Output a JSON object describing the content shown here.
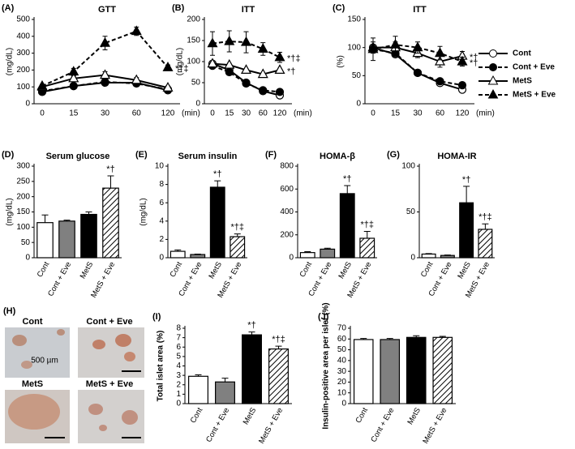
{
  "chart_data": [
    {
      "type": "line",
      "label": "(A)",
      "title": "GTT",
      "y_label": "(mg/dL)",
      "x_unit": "(min)",
      "categories": [
        "0",
        "15",
        "30",
        "60",
        "120"
      ],
      "ylim": [
        0,
        500
      ],
      "yticks": [
        0,
        100,
        200,
        300,
        400,
        500
      ],
      "series": [
        {
          "name": "Cont",
          "color": "#000000",
          "marker": "circle",
          "filled": false,
          "dashed": false,
          "values": [
            70,
            105,
            125,
            125,
            80
          ]
        },
        {
          "name": "Cont + Eve",
          "color": "#000000",
          "marker": "circle",
          "filled": true,
          "dashed": true,
          "values": [
            75,
            105,
            130,
            120,
            85
          ]
        },
        {
          "name": "MetS",
          "color": "#000000",
          "marker": "triangle",
          "filled": false,
          "dashed": false,
          "values": [
            100,
            150,
            170,
            140,
            95
          ],
          "errors": [
            10,
            15,
            20,
            15,
            10
          ]
        },
        {
          "name": "MetS + Eve",
          "color": "#000000",
          "marker": "triangle",
          "filled": true,
          "dashed": true,
          "values": [
            105,
            190,
            360,
            430,
            215
          ],
          "errors": [
            10,
            20,
            40,
            25,
            15
          ],
          "annotation": "*†‡"
        }
      ]
    },
    {
      "type": "line",
      "label": "(B)",
      "title": "ITT",
      "y_label": "(mg/dL)",
      "x_unit": "(min)",
      "categories": [
        "0",
        "15",
        "30",
        "60",
        "120"
      ],
      "ylim": [
        0,
        200
      ],
      "yticks": [
        0,
        50,
        100,
        150,
        200
      ],
      "series": [
        {
          "name": "Cont",
          "color": "#000000",
          "marker": "circle",
          "filled": false,
          "dashed": false,
          "values": [
            95,
            80,
            50,
            30,
            20
          ]
        },
        {
          "name": "Cont + Eve",
          "color": "#000000",
          "marker": "circle",
          "filled": true,
          "dashed": true,
          "values": [
            90,
            75,
            48,
            32,
            28
          ]
        },
        {
          "name": "MetS",
          "color": "#000000",
          "marker": "triangle",
          "filled": false,
          "dashed": false,
          "values": [
            95,
            92,
            80,
            70,
            80
          ],
          "annotation": "*†"
        },
        {
          "name": "MetS + Eve",
          "color": "#000000",
          "marker": "triangle",
          "filled": true,
          "dashed": true,
          "values": [
            143,
            148,
            146,
            130,
            110
          ],
          "errors": [
            28,
            25,
            25,
            15,
            12
          ],
          "annotation": "*†‡"
        }
      ]
    },
    {
      "type": "line",
      "label": "(C)",
      "title": "ITT",
      "y_label": "(%)",
      "x_unit": "(min)",
      "categories": [
        "0",
        "15",
        "30",
        "60",
        "120"
      ],
      "ylim": [
        0,
        150
      ],
      "yticks": [
        0,
        50,
        100,
        150
      ],
      "legend": "right",
      "series": [
        {
          "name": "Cont",
          "color": "#000000",
          "marker": "circle",
          "filled": false,
          "dashed": false,
          "values": [
            100,
            88,
            55,
            37,
            25
          ]
        },
        {
          "name": "Cont + Eve",
          "color": "#000000",
          "marker": "circle",
          "filled": true,
          "dashed": true,
          "values": [
            97,
            90,
            55,
            40,
            33
          ]
        },
        {
          "name": "MetS",
          "color": "#000000",
          "marker": "triangle",
          "filled": false,
          "dashed": false,
          "values": [
            100,
            100,
            90,
            75,
            85
          ],
          "errors": [
            10,
            10,
            8,
            10,
            8
          ],
          "annotation": "*†"
        },
        {
          "name": "MetS + Eve",
          "color": "#000000",
          "marker": "triangle",
          "filled": true,
          "dashed": true,
          "values": [
            97,
            105,
            100,
            90,
            75
          ],
          "errors": [
            20,
            15,
            10,
            12,
            8
          ],
          "annotation": "*†"
        }
      ]
    },
    {
      "type": "bar",
      "label": "(D)",
      "title": "Serum glucose",
      "y_label": "(mg/dL)",
      "categories": [
        "Cont",
        "Cont + Eve",
        "MetS",
        "MetS + Eve"
      ],
      "values": [
        115,
        120,
        142,
        228
      ],
      "errors": [
        25,
        3,
        8,
        40
      ],
      "colors": [
        "#ffffff",
        "#808080",
        "#000000",
        "#ffffff"
      ],
      "hatched": [
        false,
        false,
        false,
        true
      ],
      "annotations": [
        null,
        null,
        null,
        "*†"
      ],
      "ylim": [
        0,
        300
      ],
      "yticks": [
        0,
        50,
        100,
        150,
        200,
        250,
        300
      ]
    },
    {
      "type": "bar",
      "label": "(E)",
      "title": "Serum insulin",
      "y_label": "(mg/dL)",
      "categories": [
        "Cont",
        "Cont + Eve",
        "MetS",
        "MetS + Eve"
      ],
      "values": [
        0.7,
        0.35,
        7.7,
        2.3
      ],
      "errors": [
        0.15,
        0.05,
        0.7,
        0.3
      ],
      "colors": [
        "#ffffff",
        "#808080",
        "#000000",
        "#ffffff"
      ],
      "hatched": [
        false,
        false,
        false,
        true
      ],
      "annotations": [
        null,
        null,
        "*†",
        "*†‡"
      ],
      "ylim": [
        0,
        10
      ],
      "yticks": [
        0,
        2,
        4,
        6,
        8,
        10
      ]
    },
    {
      "type": "bar",
      "label": "(F)",
      "title": "HOMA-β",
      "categories": [
        "Cont",
        "Cont + Eve",
        "MetS",
        "MetS + Eve"
      ],
      "values": [
        45,
        75,
        560,
        170
      ],
      "errors": [
        8,
        8,
        70,
        60
      ],
      "colors": [
        "#ffffff",
        "#808080",
        "#000000",
        "#ffffff"
      ],
      "hatched": [
        false,
        false,
        false,
        true
      ],
      "annotations": [
        null,
        null,
        "*†",
        "*†‡"
      ],
      "ylim": [
        0,
        800
      ],
      "yticks": [
        0,
        200,
        400,
        600,
        800
      ]
    },
    {
      "type": "bar",
      "label": "(G)",
      "title": "HOMA-IR",
      "categories": [
        "Cont",
        "Cont + Eve",
        "MetS",
        "MetS + Eve"
      ],
      "values": [
        4,
        2.5,
        60,
        31
      ],
      "errors": [
        0.5,
        0.5,
        18,
        6
      ],
      "colors": [
        "#ffffff",
        "#808080",
        "#000000",
        "#ffffff"
      ],
      "hatched": [
        false,
        false,
        false,
        true
      ],
      "annotations": [
        null,
        null,
        "*†",
        "*†‡"
      ],
      "ylim": [
        0,
        100
      ],
      "yticks": [
        0,
        50,
        100
      ]
    },
    {
      "type": "bar",
      "label": "(I)",
      "y_label": "Total islet area (%)",
      "categories": [
        "Cont",
        "Cont + Eve",
        "MetS",
        "MetS + Eve"
      ],
      "values": [
        2.9,
        2.3,
        7.3,
        5.8
      ],
      "errors": [
        0.15,
        0.4,
        0.3,
        0.3
      ],
      "colors": [
        "#ffffff",
        "#808080",
        "#000000",
        "#ffffff"
      ],
      "hatched": [
        false,
        false,
        false,
        true
      ],
      "annotations": [
        null,
        null,
        "*†",
        "*†‡"
      ],
      "ylim": [
        0,
        8
      ],
      "yticks": [
        0,
        1,
        2,
        3,
        4,
        5,
        6,
        7,
        8
      ]
    },
    {
      "type": "bar",
      "label": "(J)",
      "y_label": "Insulin-positive area per islet (%)",
      "categories": [
        "Cont",
        "Cont + Eve",
        "MetS",
        "MetS + Eve"
      ],
      "values": [
        59.5,
        59.5,
        61.5,
        61.5
      ],
      "errors": [
        1,
        1,
        1.5,
        1
      ],
      "colors": [
        "#ffffff",
        "#808080",
        "#000000",
        "#ffffff"
      ],
      "hatched": [
        false,
        false,
        false,
        true
      ],
      "ylim": [
        0,
        70
      ],
      "yticks": [
        0,
        10,
        20,
        30,
        40,
        50,
        60,
        70
      ]
    }
  ],
  "micrographs": {
    "label": "(H)",
    "captions": [
      "Cont",
      "Cont + Eve",
      "MetS",
      "MetS + Eve"
    ],
    "scale_bar": "500 µm"
  }
}
